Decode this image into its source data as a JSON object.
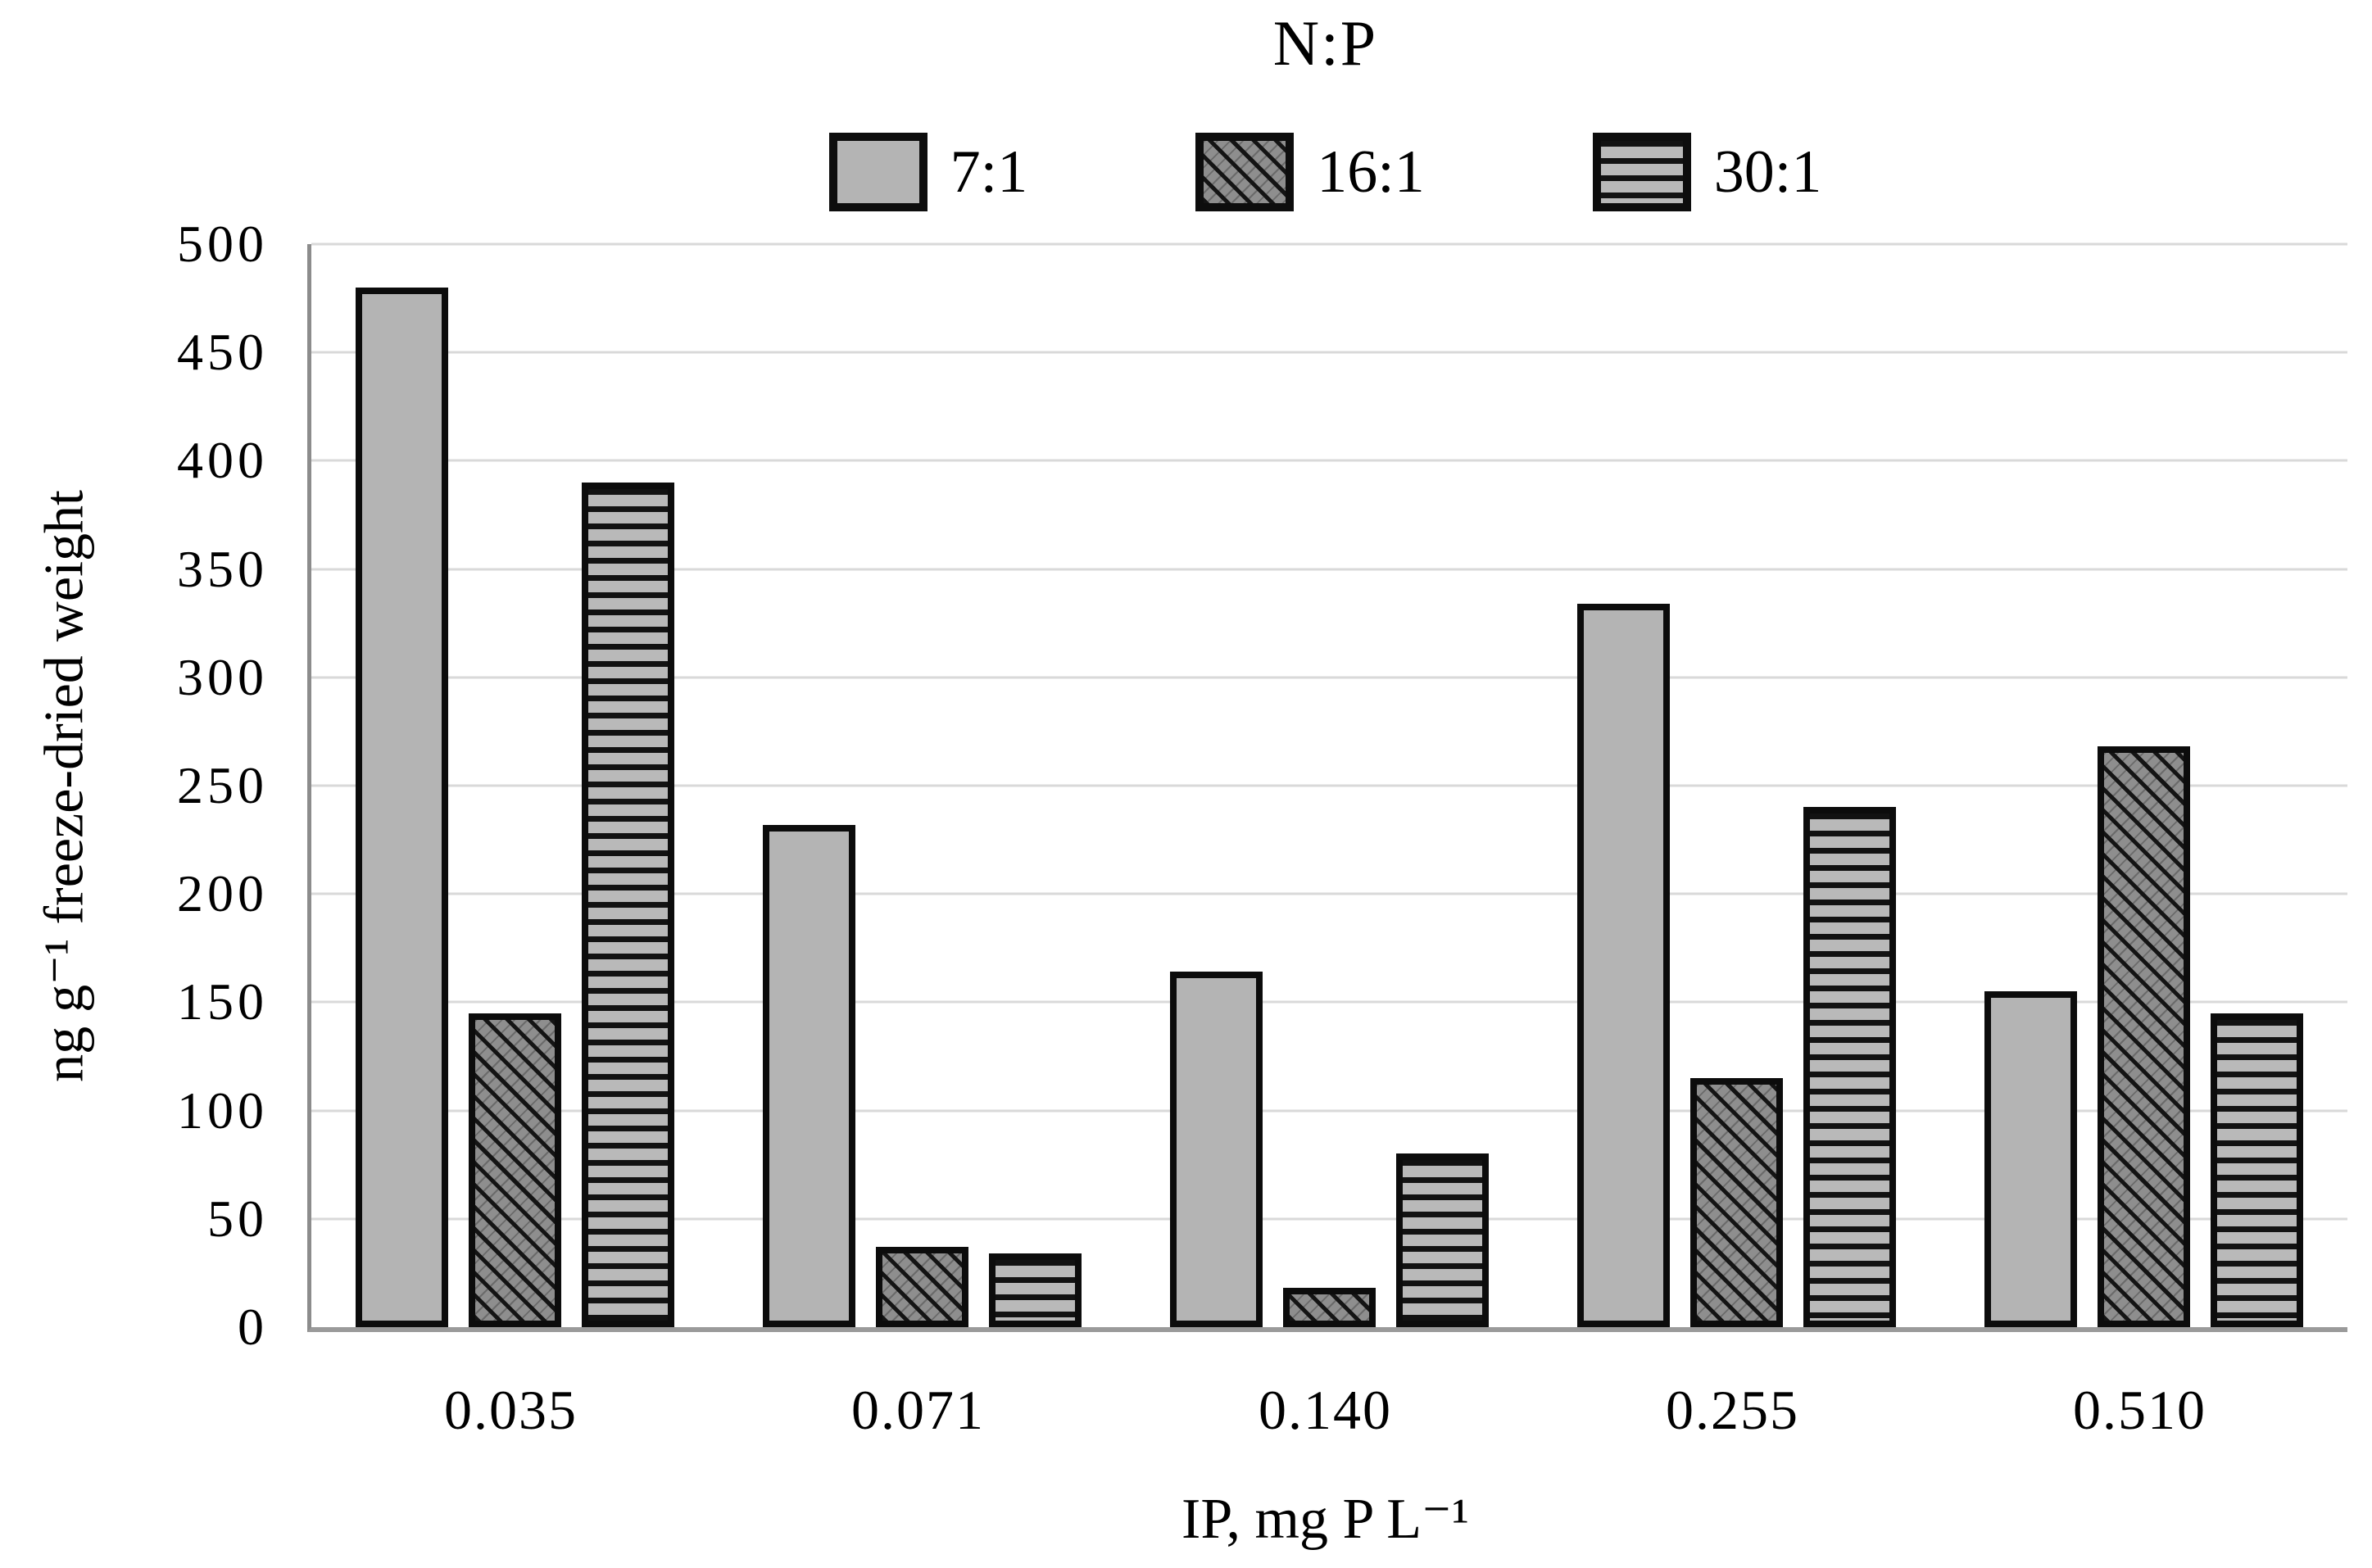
{
  "chart_data": {
    "type": "bar",
    "title": "N:P",
    "xlabel": "IP, mg P L⁻¹",
    "ylabel": "ng g⁻¹ freeze-dried weight",
    "categories": [
      "0.035",
      "0.071",
      "0.140",
      "0.255",
      "0.510"
    ],
    "series": [
      {
        "name": "7:1",
        "pattern": "solid-gray",
        "values": [
          480,
          232,
          164,
          334,
          155
        ]
      },
      {
        "name": "16:1",
        "pattern": "diagonal-hatch",
        "values": [
          145,
          37,
          18,
          115,
          268
        ]
      },
      {
        "name": "30:1",
        "pattern": "horizontal-stripes",
        "values": [
          390,
          34,
          80,
          240,
          145
        ]
      }
    ],
    "ylim": [
      0,
      500
    ],
    "y_ticks": [
      0,
      50,
      100,
      150,
      200,
      250,
      300,
      350,
      400,
      450,
      500
    ],
    "grid": "horizontal",
    "legend_position": "top-center"
  },
  "colors": {
    "solid_bar_fill": "#b4b4b4",
    "hatch_bar_fill": "#8e8e8e",
    "stripe_bar_fill": "#b9b9b9",
    "bar_outline": "#0c0c0c",
    "gridline": "#d9d9d9",
    "axis_line": "#8c8c8c",
    "text": "#000000",
    "background": "#ffffff"
  }
}
